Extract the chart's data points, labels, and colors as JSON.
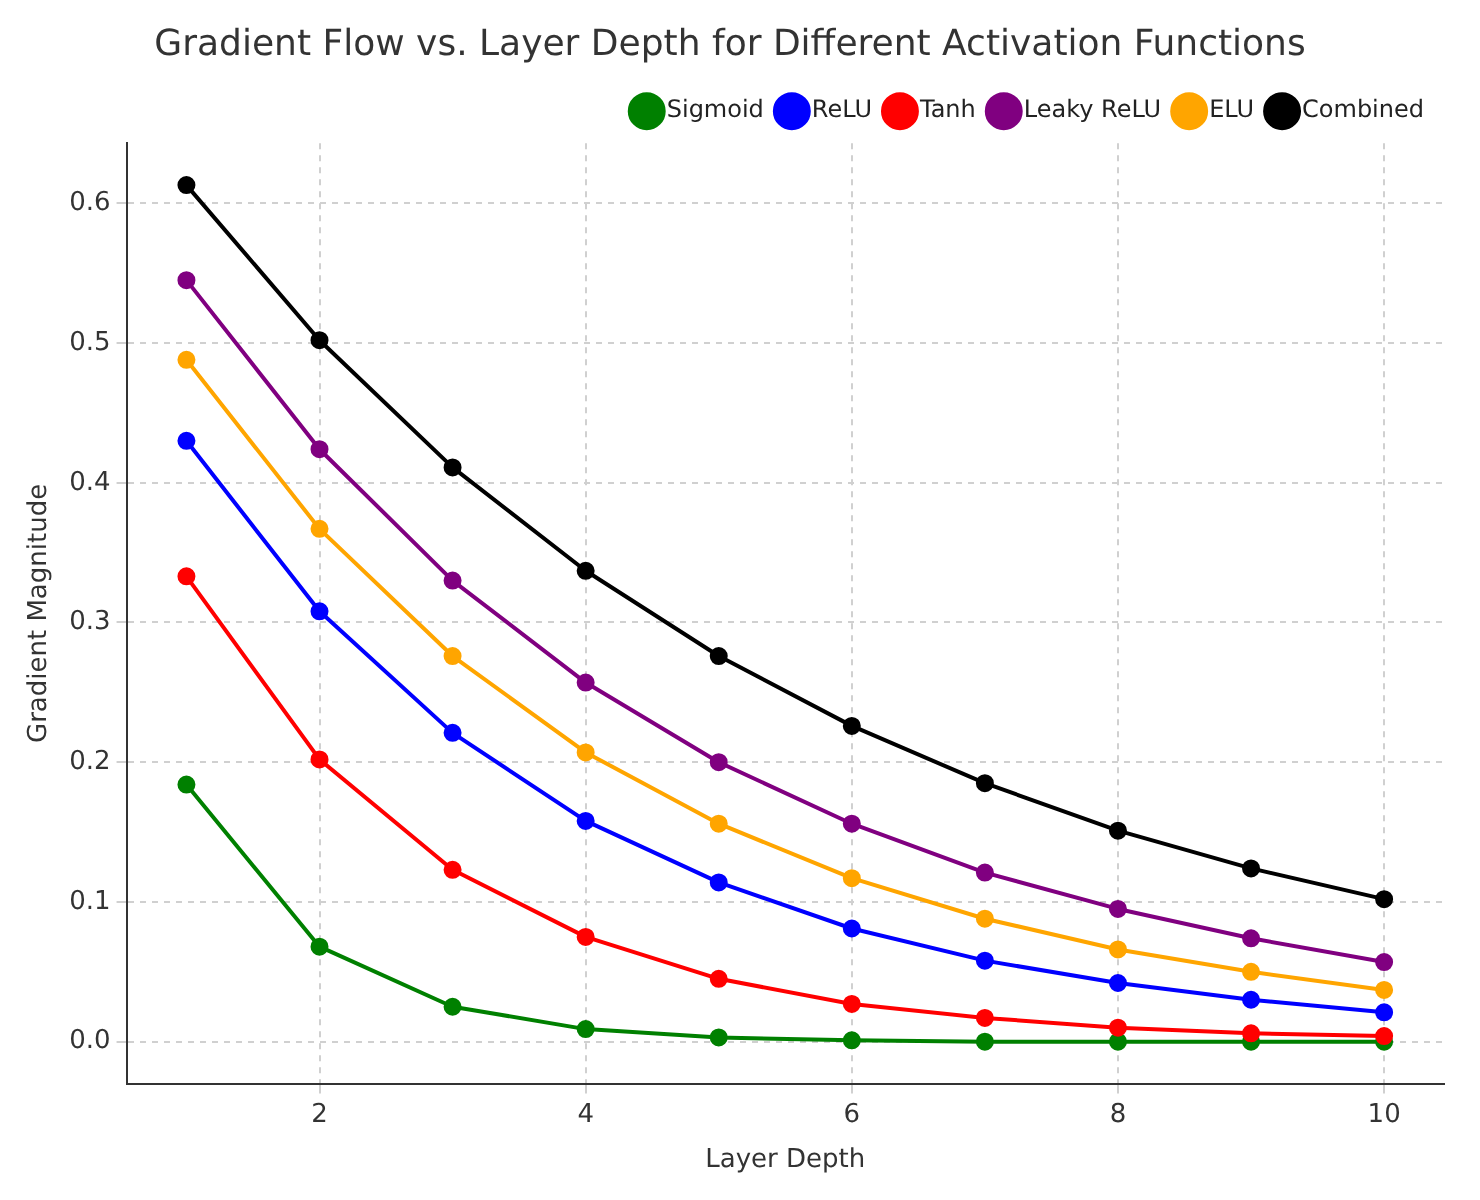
{
  "chart_data": {
    "type": "line",
    "title": "Gradient Flow vs. Layer Depth for Different Activation Functions",
    "xlabel": "Layer Depth",
    "ylabel": "Gradient Magnitude",
    "x": [
      1,
      2,
      3,
      4,
      5,
      6,
      7,
      8,
      9,
      10
    ],
    "series": [
      {
        "name": "Sigmoid",
        "color": "#008000",
        "values": [
          0.184,
          0.068,
          0.025,
          0.009,
          0.003,
          0.001,
          0.0,
          0.0,
          0.0,
          0.0
        ]
      },
      {
        "name": "ReLU",
        "color": "#0000ff",
        "values": [
          0.43,
          0.308,
          0.221,
          0.158,
          0.114,
          0.081,
          0.058,
          0.042,
          0.03,
          0.021
        ]
      },
      {
        "name": "Tanh",
        "color": "#ff0000",
        "values": [
          0.333,
          0.202,
          0.123,
          0.075,
          0.045,
          0.027,
          0.017,
          0.01,
          0.006,
          0.004
        ]
      },
      {
        "name": "Leaky ReLU",
        "color": "#800080",
        "values": [
          0.545,
          0.424,
          0.33,
          0.257,
          0.2,
          0.156,
          0.121,
          0.095,
          0.074,
          0.057
        ]
      },
      {
        "name": "ELU",
        "color": "#ffa500",
        "values": [
          0.488,
          0.367,
          0.276,
          0.207,
          0.156,
          0.117,
          0.088,
          0.066,
          0.05,
          0.037
        ]
      },
      {
        "name": "Combined",
        "color": "#000000",
        "values": [
          0.613,
          0.502,
          0.411,
          0.337,
          0.276,
          0.226,
          0.185,
          0.151,
          0.124,
          0.102
        ]
      }
    ],
    "xlim": [
      0.55,
      10.45
    ],
    "xticks": [
      2,
      4,
      6,
      8,
      10
    ],
    "ylim": [
      -0.03,
      0.643
    ],
    "yticks": [
      {
        "value": 0,
        "label": "0.0"
      },
      0.1,
      0.2,
      0.3,
      0.4,
      0.5,
      0.6
    ],
    "grid": true,
    "legend": "top right",
    "marker": "circle",
    "line_style": "solid"
  }
}
